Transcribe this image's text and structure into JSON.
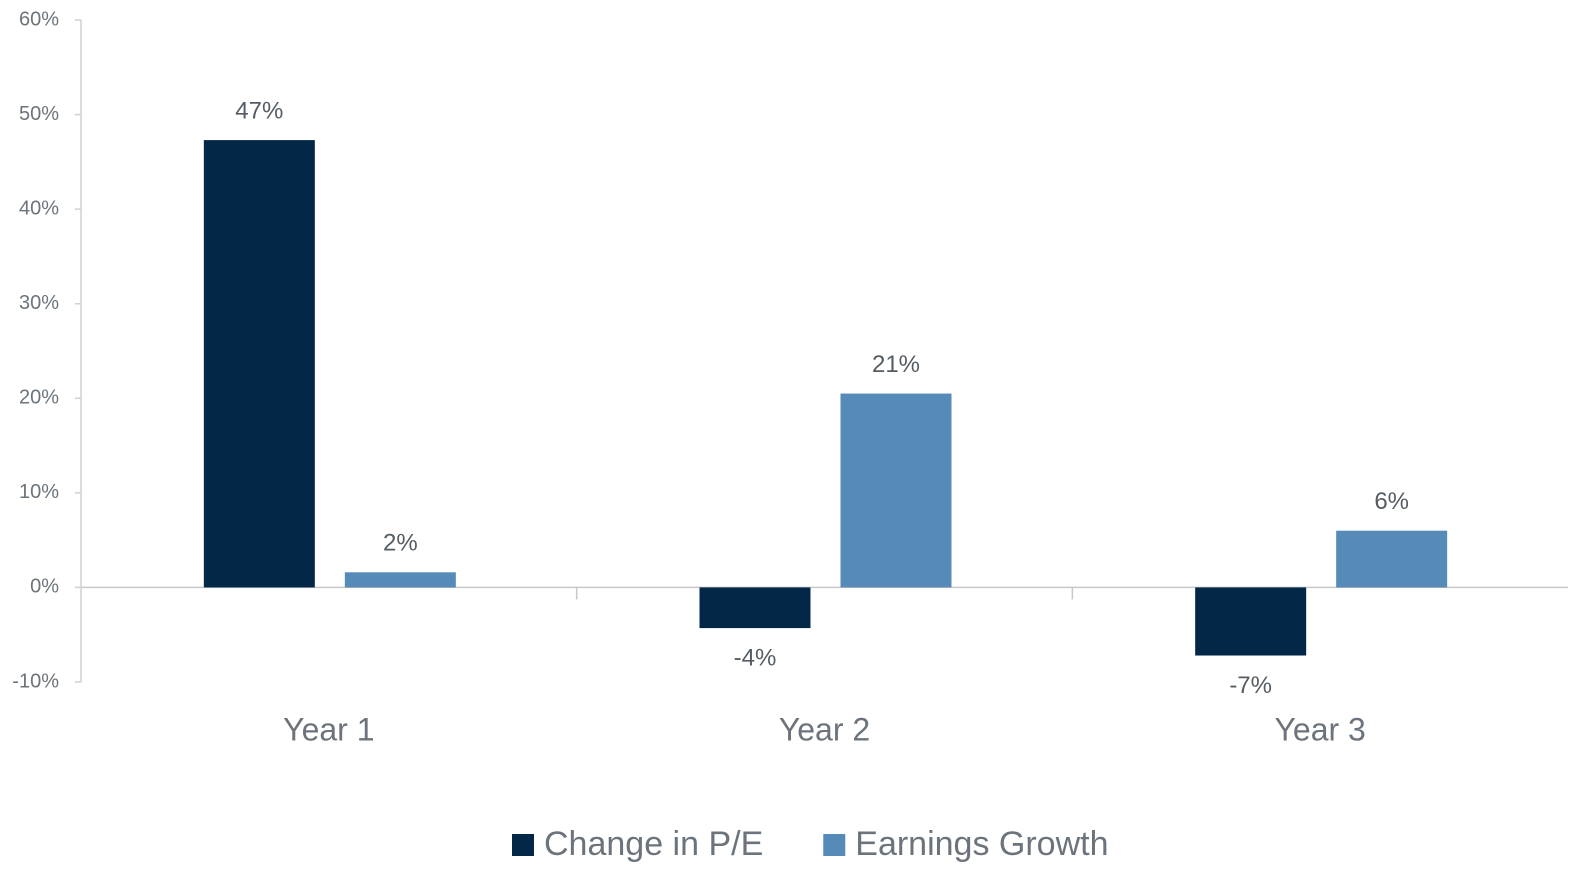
{
  "chart_data": {
    "type": "bar",
    "categories": [
      "Year 1",
      "Year 2",
      "Year 3"
    ],
    "series": [
      {
        "name": "Change in P/E",
        "color": "#022747",
        "values": [
          47.3,
          -4.3,
          -7.2
        ],
        "value_labels": [
          "47%",
          "-4%",
          "-7%"
        ]
      },
      {
        "name": "Earnings Growth",
        "color": "#568ab8",
        "values": [
          1.6,
          20.5,
          6.0
        ],
        "value_labels": [
          "2%",
          "21%",
          "6%"
        ]
      }
    ],
    "ylim": [
      -10,
      60
    ],
    "yticks": [
      {
        "value": -10,
        "label": "-10%"
      },
      {
        "value": 0,
        "label": "0%"
      },
      {
        "value": 10,
        "label": "10%"
      },
      {
        "value": 20,
        "label": "20%"
      },
      {
        "value": 30,
        "label": "30%"
      },
      {
        "value": 40,
        "label": "40%"
      },
      {
        "value": 50,
        "label": "50%"
      },
      {
        "value": 60,
        "label": "60%"
      }
    ],
    "legend": "bottom"
  }
}
